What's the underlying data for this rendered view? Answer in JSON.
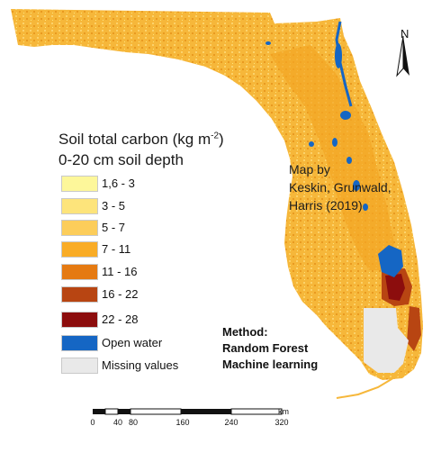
{
  "legend": {
    "title_line1": "Soil total carbon (kg m",
    "title_sup": "-2",
    "title_line1_end": ")",
    "title_line2": "0-20 cm soil depth",
    "items": [
      {
        "label": "1,6 - 3",
        "color": "#fdf79a"
      },
      {
        "label": "3 - 5",
        "color": "#fde47b"
      },
      {
        "label": "5 - 7",
        "color": "#fccd5a"
      },
      {
        "label": "7 - 11",
        "color": "#f9ac26"
      },
      {
        "label": "11 - 16",
        "color": "#e57a12"
      },
      {
        "label": "16 - 22",
        "color": "#b84512"
      },
      {
        "label": "22 - 28",
        "color": "#8c0d0d"
      },
      {
        "label": "Open water",
        "color": "#1566c4"
      },
      {
        "label": "Missing values",
        "color": "#e9e9e9"
      }
    ]
  },
  "credit": {
    "line1": "Map by",
    "line2": "Keskin, Grunwald,",
    "line3": "Harris (2019)"
  },
  "method": {
    "line1": "Method:",
    "line2": "Random Forest",
    "line3": "Machine learning"
  },
  "north_arrow": {
    "label": "N"
  },
  "scale_bar": {
    "unit": "km",
    "ticks": [
      "0",
      "40",
      "80",
      "160",
      "240",
      "320"
    ]
  },
  "colors": {
    "land_base": "#f6b73a",
    "land_light": "#fcd26b",
    "open_water": "#1566c4",
    "missing": "#e9e9e9",
    "high_carbon": "#8c0d0d"
  }
}
